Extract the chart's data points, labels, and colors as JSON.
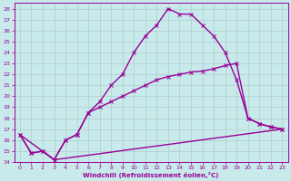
{
  "xlabel": "Windchill (Refroidissement éolien,°C)",
  "bg_color": "#c8eaea",
  "grid_color": "#b0cccc",
  "line_color": "#990099",
  "xlim": [
    -0.5,
    23.5
  ],
  "ylim": [
    14,
    28.5
  ],
  "xticks": [
    0,
    1,
    2,
    3,
    4,
    5,
    6,
    7,
    8,
    9,
    10,
    11,
    12,
    13,
    14,
    15,
    16,
    17,
    18,
    19,
    20,
    21,
    22,
    23
  ],
  "yticks": [
    14,
    15,
    16,
    17,
    18,
    19,
    20,
    21,
    22,
    23,
    24,
    25,
    26,
    27,
    28
  ],
  "series": [
    {
      "x": [
        0,
        3,
        23
      ],
      "y": [
        16.5,
        14.2,
        17.0
      ],
      "marker": false,
      "lw": 1.0
    },
    {
      "x": [
        0,
        1,
        2,
        3,
        4,
        5,
        6,
        7,
        8,
        9,
        10,
        11,
        12,
        13,
        14,
        15,
        16,
        17,
        18,
        19,
        20,
        21,
        22,
        23
      ],
      "y": [
        16.5,
        14.8,
        15.0,
        14.2,
        16.0,
        16.5,
        18.5,
        19.0,
        19.5,
        20.0,
        20.5,
        21.0,
        21.5,
        21.8,
        22.0,
        22.2,
        22.3,
        22.5,
        22.8,
        23.0,
        18.0,
        17.5,
        17.2,
        17.0
      ],
      "marker": true,
      "lw": 1.0
    },
    {
      "x": [
        0,
        1,
        2,
        3,
        4,
        5,
        6,
        7,
        8,
        9,
        10,
        11,
        12,
        13,
        14,
        15,
        16,
        17,
        18,
        19,
        20,
        21,
        22,
        23
      ],
      "y": [
        16.5,
        14.8,
        15.0,
        14.2,
        16.0,
        16.5,
        18.5,
        19.5,
        21.0,
        22.0,
        24.0,
        25.5,
        26.5,
        28.0,
        27.5,
        27.5,
        26.5,
        25.5,
        24.0,
        21.5,
        18.0,
        17.5,
        17.2,
        17.0
      ],
      "marker": true,
      "lw": 1.0
    }
  ]
}
